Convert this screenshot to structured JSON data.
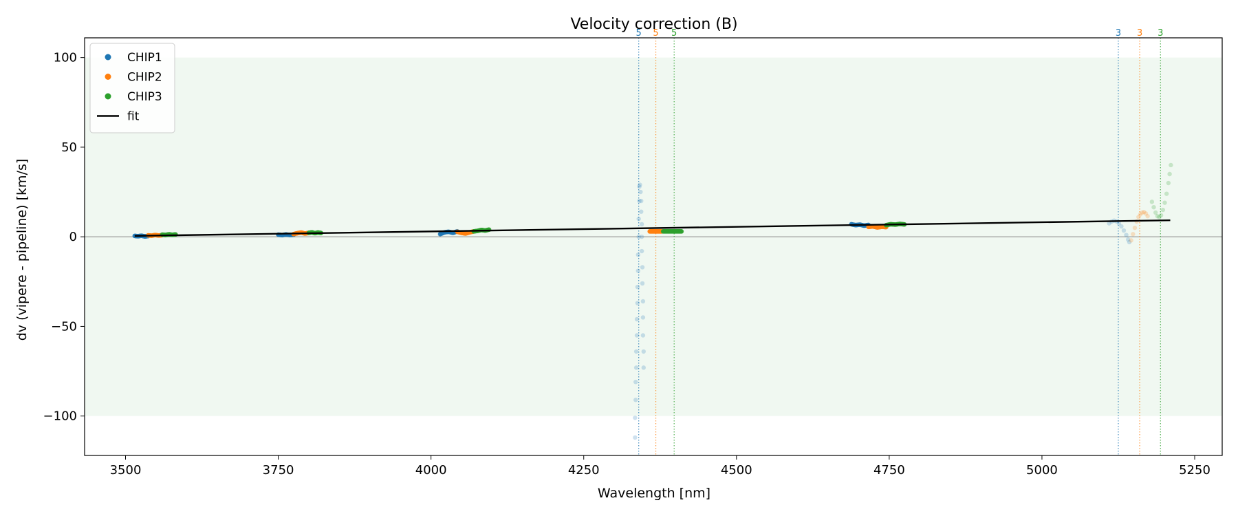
{
  "chart_data": {
    "type": "scatter",
    "title": "Velocity correction (B)",
    "xlabel": "Wavelength [nm]",
    "ylabel": "dv (vipere - pipeline) [km/s]",
    "xlim": [
      3433,
      5295
    ],
    "ylim": [
      -122,
      111
    ],
    "xticks": [
      3500,
      3750,
      4000,
      4250,
      4500,
      4750,
      5000,
      5250
    ],
    "yticks": [
      100,
      50,
      0,
      -50,
      -100
    ],
    "xtick_labels": [
      "3500",
      "3750",
      "4000",
      "4250",
      "4500",
      "4750",
      "5000",
      "5250"
    ],
    "ytick_labels": [
      "100",
      "50",
      "0",
      "−50",
      "−100"
    ],
    "shaded_band": {
      "y0": -100,
      "y1": 100,
      "color": "#e8f5e9"
    },
    "zero_line": true,
    "grid": false,
    "legend_position": "top-left",
    "legend": [
      {
        "label": "CHIP1",
        "kind": "point",
        "color": "#1f77b4"
      },
      {
        "label": "CHIP2",
        "kind": "point",
        "color": "#ff7f0e"
      },
      {
        "label": "CHIP3",
        "kind": "point",
        "color": "#2ca02c"
      },
      {
        "label": "fit",
        "kind": "line",
        "color": "#000000"
      }
    ],
    "series": [
      {
        "name": "CHIP1",
        "color": "#1f77b4",
        "segments": [
          {
            "x0": 3515,
            "x1": 3537,
            "y": [
              0.5,
              0.3,
              0.6,
              0.2,
              0.4
            ]
          },
          {
            "x0": 3750,
            "x1": 3775,
            "y": [
              1.2,
              0.9,
              1.3,
              1.0,
              1.1
            ]
          },
          {
            "x0": 4015,
            "x1": 4043,
            "y": [
              1.5,
              2.5,
              2.8,
              2.2,
              3.0
            ]
          },
          {
            "x0": 4688,
            "x1": 4716,
            "y": [
              7.0,
              6.5,
              6.8,
              6.2,
              6.6
            ]
          }
        ]
      },
      {
        "name": "CHIP2",
        "color": "#ff7f0e",
        "segments": [
          {
            "x0": 3537,
            "x1": 3560,
            "y": [
              0.8,
              0.6,
              1.0,
              0.7,
              0.9
            ]
          },
          {
            "x0": 3775,
            "x1": 3800,
            "y": [
              1.5,
              2.0,
              2.4,
              1.8,
              2.2
            ]
          },
          {
            "x0": 4043,
            "x1": 4070,
            "y": [
              2.8,
              2.2,
              1.8,
              2.5,
              3.0
            ]
          },
          {
            "x0": 4358,
            "x1": 4378,
            "y": [
              3.0,
              3.0,
              3.0,
              3.0,
              3.0
            ]
          },
          {
            "x0": 4716,
            "x1": 4745,
            "y": [
              5.5,
              5.8,
              5.2,
              5.6,
              5.4
            ]
          }
        ]
      },
      {
        "name": "CHIP3",
        "color": "#2ca02c",
        "segments": [
          {
            "x0": 3560,
            "x1": 3582,
            "y": [
              1.2,
              1.0,
              1.4,
              1.1,
              1.3
            ]
          },
          {
            "x0": 3800,
            "x1": 3820,
            "y": [
              2.2,
              2.5,
              2.0,
              2.4,
              2.1
            ]
          },
          {
            "x0": 4070,
            "x1": 4095,
            "y": [
              3.0,
              3.3,
              3.8,
              3.5,
              4.0
            ]
          },
          {
            "x0": 4380,
            "x1": 4410,
            "y": [
              3.0,
              3.0,
              3.0,
              3.0,
              3.0
            ]
          },
          {
            "x0": 4745,
            "x1": 4775,
            "y": [
              6.5,
              7.0,
              6.8,
              7.2,
              6.9
            ]
          }
        ]
      }
    ],
    "faded_series": [
      {
        "name": "CHIP1",
        "color": "#1f77b4",
        "points": [
          [
            4334,
            -112
          ],
          [
            4334,
            -101
          ],
          [
            4335,
            -91
          ],
          [
            4335,
            -81
          ],
          [
            4336,
            -73
          ],
          [
            4336,
            -64
          ],
          [
            4337,
            -55
          ],
          [
            4337,
            -46
          ],
          [
            4338,
            -37
          ],
          [
            4338,
            -28
          ],
          [
            4339,
            -19
          ],
          [
            4339,
            -10
          ],
          [
            4340,
            0
          ],
          [
            4340,
            10
          ],
          [
            4341,
            20
          ],
          [
            4341,
            28
          ],
          [
            4342,
            29
          ],
          [
            4343,
            25
          ],
          [
            4344,
            20
          ],
          [
            4344,
            14
          ],
          [
            4345,
            7
          ],
          [
            4345,
            0
          ],
          [
            4345,
            -8
          ],
          [
            4346,
            -17
          ],
          [
            4346,
            -26
          ],
          [
            4347,
            -36
          ],
          [
            4347,
            -45
          ],
          [
            4347,
            -55
          ],
          [
            4348,
            -64
          ],
          [
            4348,
            -73
          ],
          [
            5110,
            7.5
          ],
          [
            5114,
            8.5
          ],
          [
            5118,
            9.0
          ],
          [
            5122,
            8.6
          ],
          [
            5126,
            7.5
          ],
          [
            5130,
            5.8
          ],
          [
            5134,
            3.5
          ],
          [
            5138,
            1.0
          ],
          [
            5141,
            -1.5
          ],
          [
            5143,
            -3.0
          ]
        ]
      },
      {
        "name": "CHIP2",
        "color": "#ff7f0e",
        "points": [
          [
            5146,
            -2.0
          ],
          [
            5149,
            1.5
          ],
          [
            5152,
            5.0
          ],
          [
            5155,
            8.5
          ],
          [
            5158,
            11.0
          ],
          [
            5161,
            12.5
          ],
          [
            5164,
            13.5
          ],
          [
            5167,
            13.8
          ],
          [
            5170,
            13.0
          ],
          [
            5173,
            11.5
          ]
        ]
      },
      {
        "name": "CHIP3",
        "color": "#2ca02c",
        "points": [
          [
            5180,
            19.5
          ],
          [
            5183,
            16.5
          ],
          [
            5186,
            13.5
          ],
          [
            5189,
            11.5
          ],
          [
            5192,
            11.0
          ],
          [
            5195,
            12.0
          ],
          [
            5198,
            15.0
          ],
          [
            5201,
            19.0
          ],
          [
            5204,
            24.0
          ],
          [
            5207,
            30.0
          ],
          [
            5209,
            35.0
          ],
          [
            5211,
            40.0
          ]
        ]
      }
    ],
    "fit": {
      "x": [
        3515,
        5210
      ],
      "y": [
        0.5,
        9.2
      ]
    },
    "vlines": [
      {
        "x": 4340,
        "label": "5",
        "color": "#1f77b4"
      },
      {
        "x": 4368,
        "label": "5",
        "color": "#ff7f0e"
      },
      {
        "x": 4398,
        "label": "5",
        "color": "#2ca02c"
      },
      {
        "x": 5125,
        "label": "3",
        "color": "#1f77b4"
      },
      {
        "x": 5160,
        "label": "3",
        "color": "#ff7f0e"
      },
      {
        "x": 5194,
        "label": "3",
        "color": "#2ca02c"
      }
    ]
  }
}
